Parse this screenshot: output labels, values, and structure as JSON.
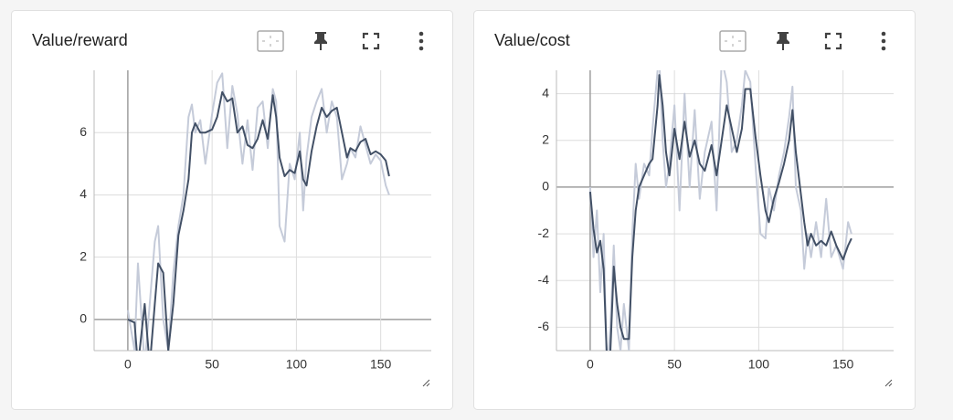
{
  "chart_data": [
    {
      "type": "line",
      "title": "Value/reward",
      "x": [
        0,
        4,
        6,
        10,
        13,
        16,
        18,
        21,
        24,
        27,
        30,
        33,
        36,
        38,
        40,
        43,
        46,
        50,
        53,
        56,
        59,
        62,
        65,
        68,
        71,
        74,
        77,
        80,
        83,
        86,
        88,
        90,
        93,
        96,
        99,
        102,
        104,
        106,
        109,
        112,
        115,
        118,
        121,
        124,
        127,
        130,
        132,
        135,
        138,
        141,
        144,
        147,
        150,
        153,
        155
      ],
      "series": [
        {
          "color": "#c5cbd9",
          "values": [
            0.3,
            -1,
            1.8,
            -1.5,
            0.5,
            2.5,
            3,
            0,
            -1,
            1.5,
            3,
            4,
            6.5,
            6.9,
            6,
            6.4,
            5,
            6.6,
            7.6,
            7.9,
            5.5,
            7.5,
            6.6,
            5,
            6.4,
            4.8,
            6.8,
            7,
            5.5,
            7.4,
            7,
            3,
            2.5,
            5,
            4.5,
            6,
            3.5,
            5.2,
            6.5,
            7,
            7.4,
            6,
            7,
            6.5,
            4.5,
            5,
            5.5,
            5.2,
            6.2,
            5.6,
            5,
            5.3,
            5.1,
            4.3,
            4
          ]
        },
        {
          "color": "#425066",
          "values": [
            0,
            -0.1,
            -1.5,
            0.5,
            -1.5,
            0.5,
            1.8,
            1.5,
            -1,
            0.5,
            2.7,
            3.5,
            4.5,
            6.0,
            6.3,
            6.0,
            6.0,
            6.1,
            6.5,
            7.3,
            7.0,
            7.1,
            6.0,
            6.2,
            5.6,
            5.5,
            5.8,
            6.4,
            5.8,
            7.2,
            6.5,
            5.2,
            4.6,
            4.8,
            4.7,
            5.4,
            4.5,
            4.3,
            5.4,
            6.2,
            6.8,
            6.5,
            6.7,
            6.8,
            6.0,
            5.2,
            5.5,
            5.4,
            5.7,
            5.8,
            5.3,
            5.4,
            5.3,
            5.1,
            4.6
          ]
        }
      ],
      "xlim": [
        -20,
        180
      ],
      "ylim": [
        -1,
        8
      ],
      "xticks": [
        0,
        50,
        100,
        150
      ],
      "yticks": [
        0,
        2,
        4,
        6
      ],
      "grid": true
    },
    {
      "type": "line",
      "title": "Value/cost",
      "x": [
        0,
        2,
        4,
        6,
        8,
        10,
        12,
        14,
        16,
        18,
        20,
        23,
        25,
        27,
        29,
        32,
        35,
        37,
        40,
        41,
        43,
        45,
        47,
        50,
        53,
        56,
        59,
        62,
        65,
        68,
        72,
        75,
        78,
        81,
        84,
        87,
        90,
        92,
        95,
        98,
        101,
        104,
        106,
        109,
        112,
        115,
        118,
        120,
        122,
        125,
        127,
        129,
        131,
        134,
        137,
        140,
        143,
        146,
        150,
        153,
        155
      ],
      "series": [
        {
          "color": "#c5cbd9",
          "values": [
            0,
            -3,
            -1,
            -4.5,
            -2,
            -8,
            -6,
            -2.5,
            -6,
            -7,
            -5,
            -7,
            -2,
            1,
            -0.5,
            1,
            0.5,
            2.5,
            5,
            5.5,
            2,
            0,
            1,
            3.5,
            -1,
            4,
            0,
            3.3,
            -0.5,
            1.5,
            2.8,
            -1,
            5.5,
            4.5,
            1.5,
            2,
            3.5,
            5,
            4.5,
            1,
            -2,
            -2.2,
            0,
            -1,
            0.5,
            1.5,
            3,
            4.3,
            0,
            -1,
            -3.5,
            -2,
            -3,
            -1.5,
            -3,
            -0.5,
            -3,
            -2.5,
            -3.5,
            -1.5,
            -2
          ]
        },
        {
          "color": "#425066",
          "values": [
            -0.2,
            -1.8,
            -2.8,
            -2.3,
            -3.5,
            -7.5,
            -7,
            -3.4,
            -5,
            -6,
            -6.5,
            -6.5,
            -3,
            -1,
            0,
            0.5,
            1,
            1.2,
            3.5,
            4.8,
            3.5,
            1.5,
            0.5,
            2.5,
            1.2,
            2.8,
            1.3,
            2,
            1,
            0.7,
            1.8,
            0.5,
            2,
            3.5,
            2.5,
            1.5,
            2.5,
            4.2,
            4.2,
            2.2,
            0.5,
            -1,
            -1.5,
            -0.5,
            0.2,
            1,
            2,
            3.3,
            1.5,
            -0.3,
            -1.5,
            -2.5,
            -2,
            -2.5,
            -2.3,
            -2.5,
            -1.9,
            -2.5,
            -3.1,
            -2.5,
            -2.2
          ]
        }
      ],
      "xlim": [
        -20,
        180
      ],
      "ylim": [
        -7,
        5
      ],
      "xticks": [
        0,
        50,
        100,
        150
      ],
      "yticks": [
        -6,
        -4,
        -2,
        0,
        2,
        4
      ],
      "grid": true
    }
  ]
}
